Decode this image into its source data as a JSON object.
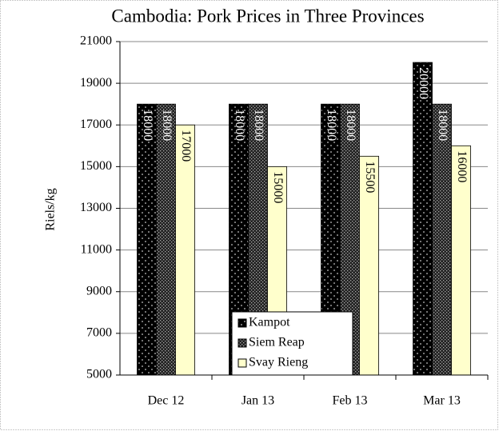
{
  "chart_data": {
    "type": "bar",
    "title": "Cambodia: Pork Prices in Three Provinces",
    "y_label": "Riels/kg",
    "categories": [
      "Dec 12",
      "Jan 13",
      "Feb 13",
      "Mar 13"
    ],
    "series": [
      {
        "name": "Kampot",
        "color": "#000000",
        "values": [
          18000,
          18000,
          18000,
          20000
        ]
      },
      {
        "name": "Siem Reap",
        "color": "#333333",
        "values": [
          18000,
          18000,
          18000,
          18000
        ]
      },
      {
        "name": "Svay Rieng",
        "color": "#ffffcc",
        "values": [
          17000,
          15000,
          15500,
          16000
        ]
      }
    ],
    "ylim": [
      5000,
      21000
    ],
    "yticks": [
      5000,
      7000,
      9000,
      11000,
      13000,
      15000,
      17000,
      19000,
      21000
    ],
    "grid": true,
    "legend": "bottom"
  }
}
